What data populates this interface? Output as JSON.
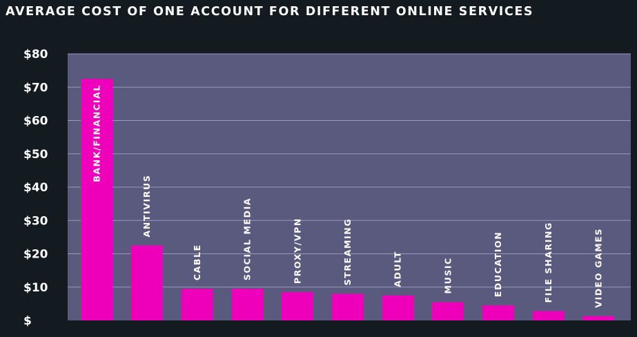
{
  "chart_data": {
    "type": "bar",
    "title": "AVERAGE COST OF ONE ACCOUNT FOR DIFFERENT ONLINE SERVICES",
    "categories": [
      "BANK/FINANCIAL",
      "ANTIVIRUS",
      "CABLE",
      "SOCIAL MEDIA",
      "PROXY/VPN",
      "STREAMING",
      "ADULT",
      "MUSIC",
      "EDUCATION",
      "FILE SHARING",
      "VIDEO GAMES"
    ],
    "values": [
      72.5,
      22.5,
      9.5,
      9.5,
      8.5,
      8,
      7.5,
      5.5,
      4.5,
      2.8,
      1.3
    ],
    "ylim": [
      0,
      80
    ],
    "y_ticks": [
      {
        "value": 0,
        "label": "$"
      },
      {
        "value": 10,
        "label": "$10"
      },
      {
        "value": 20,
        "label": "$20"
      },
      {
        "value": 30,
        "label": "$30"
      },
      {
        "value": 40,
        "label": "$40"
      },
      {
        "value": 50,
        "label": "$50"
      },
      {
        "value": 60,
        "label": "$60"
      },
      {
        "value": 70,
        "label": "$70"
      },
      {
        "value": 80,
        "label": "$80"
      }
    ],
    "grid": true,
    "legend": "none",
    "labels_on_bars": true,
    "colors": {
      "bar": "#ee00bb",
      "plot_background": "#5a5a7e",
      "page_background": "#131a20",
      "gridline": "#9898b8",
      "text": "#ffffff"
    }
  }
}
